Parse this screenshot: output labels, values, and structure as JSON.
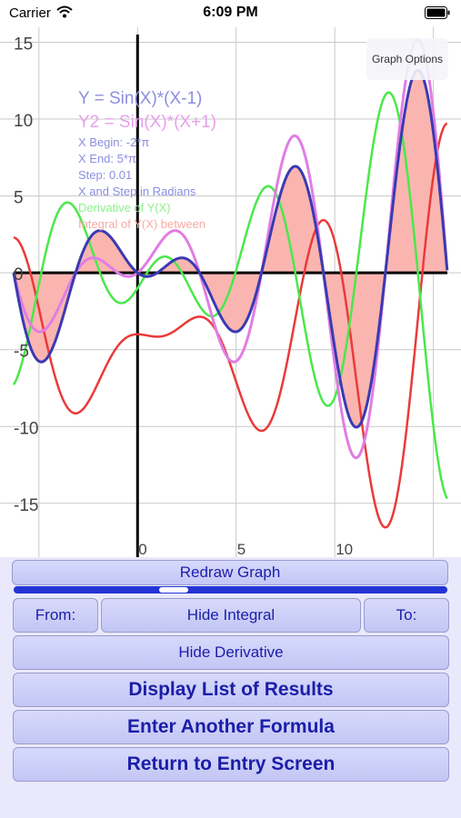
{
  "status_bar": {
    "carrier": "Carrier",
    "time": "6:09 PM"
  },
  "graph_options_label": "Graph Options",
  "info": {
    "y1_formula": "Y = Sin(X)*(X-1)",
    "y2_formula": "Y2 = Sin(X)*(X+1)",
    "x_begin": "X Begin: -2*π",
    "x_end": "X End: 5*π",
    "step": "Step: 0.01",
    "radians_note": "X and Step in Radians",
    "derivative_label": "Derivative of Y(X)",
    "integral_label": "Integral of Y(X) between"
  },
  "chart_data": {
    "type": "line",
    "x_ticks": [
      "0",
      "5",
      "10"
    ],
    "y_ticks": [
      "15",
      "10",
      "5",
      "0",
      "-5",
      "-10",
      "-15"
    ],
    "xlim": [
      -6.2832,
      15.708
    ],
    "ylim": [
      -18.5,
      15.5
    ],
    "grid": true,
    "series": [
      {
        "name": "Y = Sin(X)*(X-1)",
        "color": "#3a3ab2"
      },
      {
        "name": "Y2 = Sin(X)*(X+1)",
        "color": "#e07de4"
      },
      {
        "name": "Derivative of Y(X)",
        "color": "#4ae84a"
      }
    ],
    "red_curve_color": "#ea3a3a",
    "integral_fill_color": "#fbb5b0"
  },
  "buttons": {
    "redraw": "Redraw Graph",
    "from": "From:",
    "hide_integral": "Hide Integral",
    "to": "To:",
    "hide_derivative": "Hide Derivative",
    "display_list": "Display List of Results",
    "enter_formula": "Enter Another Formula",
    "return_entry": "Return to Entry Screen"
  },
  "slider": {
    "value": 0.36
  }
}
